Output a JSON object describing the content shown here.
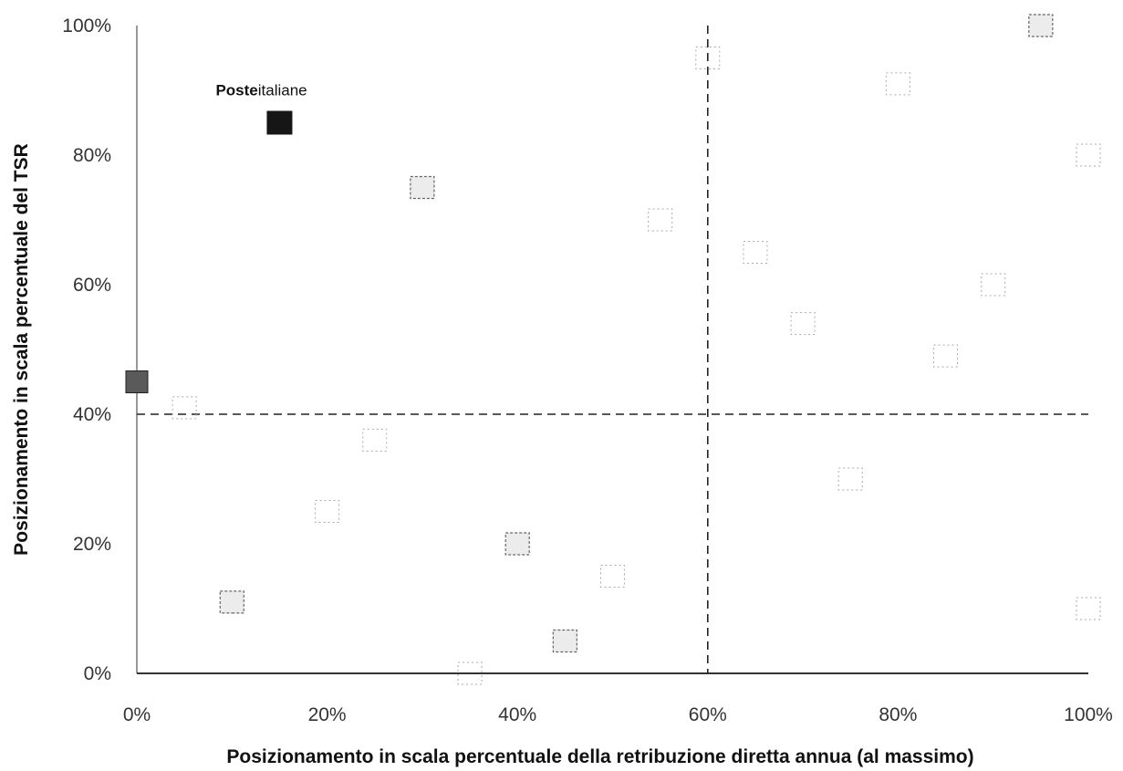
{
  "chart_data": {
    "type": "scatter",
    "xlabel": "Posizionamento in scala percentuale della retribuzione diretta annua (al massimo)",
    "ylabel": "Posizionamento in scala percentuale del TSR",
    "xlim": [
      0,
      100
    ],
    "ylim": [
      0,
      100
    ],
    "x_ticks": [
      "0%",
      "20%",
      "40%",
      "60%",
      "80%",
      "100%"
    ],
    "y_ticks": [
      "0%",
      "20%",
      "40%",
      "60%",
      "80%",
      "100%"
    ],
    "reference_lines": {
      "x": 60,
      "y": 40
    },
    "highlight": {
      "label_bold": "Poste",
      "label_rest": "italiane",
      "x": 15,
      "y": 85
    },
    "points": [
      {
        "x": 15,
        "y": 85,
        "style": "highlight"
      },
      {
        "x": 0,
        "y": 45,
        "style": "dark"
      },
      {
        "x": 5,
        "y": 41,
        "style": "faint"
      },
      {
        "x": 10,
        "y": 11,
        "style": "medium"
      },
      {
        "x": 20,
        "y": 25,
        "style": "faint"
      },
      {
        "x": 25,
        "y": 36,
        "style": "faint"
      },
      {
        "x": 30,
        "y": 75,
        "style": "medium"
      },
      {
        "x": 35,
        "y": 0,
        "style": "faint"
      },
      {
        "x": 40,
        "y": 20,
        "style": "medium"
      },
      {
        "x": 45,
        "y": 5,
        "style": "medium"
      },
      {
        "x": 50,
        "y": 15,
        "style": "faint"
      },
      {
        "x": 55,
        "y": 70,
        "style": "faint"
      },
      {
        "x": 60,
        "y": 95,
        "style": "faint"
      },
      {
        "x": 65,
        "y": 65,
        "style": "faint"
      },
      {
        "x": 70,
        "y": 54,
        "style": "faint"
      },
      {
        "x": 75,
        "y": 30,
        "style": "faint"
      },
      {
        "x": 80,
        "y": 91,
        "style": "faint"
      },
      {
        "x": 85,
        "y": 49,
        "style": "faint"
      },
      {
        "x": 90,
        "y": 60,
        "style": "faint"
      },
      {
        "x": 95,
        "y": 100,
        "style": "medium"
      },
      {
        "x": 100,
        "y": 80,
        "style": "faint"
      },
      {
        "x": 100,
        "y": 10,
        "style": "faint"
      }
    ],
    "grid": false,
    "legend": "none"
  }
}
